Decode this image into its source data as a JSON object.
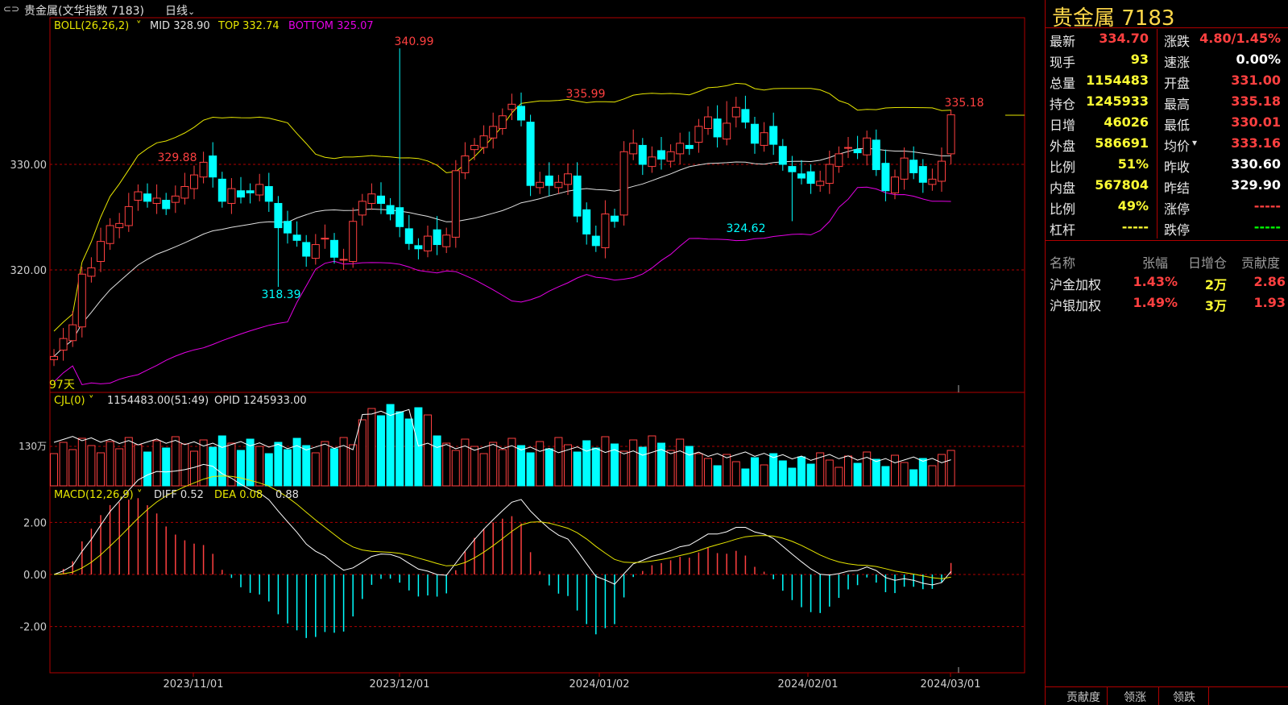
{
  "titlebar": {
    "icon": "link-icon",
    "title": "贵金属(文华指数 7183)",
    "period": "日线",
    "period_caret": "v"
  },
  "boll": {
    "label": "BOLL(26,26,2)",
    "mid_text": "MID 328.90",
    "top_text": "TOP 332.74",
    "bottom_text": "BOTTOM 325.07",
    "annotations": [
      "340.99",
      "335.99",
      "335.18",
      "329.88",
      "318.39",
      "324.62"
    ],
    "day_count": "97天"
  },
  "price_axis": [
    "330.00",
    "320.00"
  ],
  "cjl": {
    "label": "CJL(0)",
    "values_text": "1154483.00(51:49)",
    "opid_text": "OPID 1245933.00",
    "axis_label": "130万"
  },
  "macd": {
    "label": "MACD(12,26,9)",
    "diff_text": "DIFF 0.52",
    "dea_text": "DEA 0.08",
    "macd_text": "0.88",
    "axis": [
      "2.00",
      "0.00",
      "-2.00"
    ]
  },
  "date_axis": [
    "2023/11/01",
    "2023/12/01",
    "2024/01/02",
    "2024/02/01",
    "2024/03/01"
  ],
  "colors": {
    "up": "#ff4040",
    "down": "#00ffff",
    "mid_line": "#e0e0e0",
    "top_line": "#e6e600",
    "bottom_line": "#e600e6",
    "grid": "#b00000",
    "yellow": "#ffff33",
    "white": "#ffffff",
    "green": "#00ff00"
  },
  "sidebar": {
    "title": "贵金属  7183",
    "quote_left": [
      {
        "label": "最新",
        "value": "334.70",
        "color": "#ff4040"
      },
      {
        "label": "现手",
        "value": "93",
        "color": "#ffff33"
      },
      {
        "label": "总量",
        "value": "1154483",
        "color": "#ffff33"
      },
      {
        "label": "持仓",
        "value": "1245933",
        "color": "#ffff33"
      },
      {
        "label": "日增",
        "value": "46026",
        "color": "#ffff33"
      },
      {
        "label": "外盘",
        "value": "586691",
        "color": "#ffff33"
      },
      {
        "label": "比例",
        "value": "51%",
        "color": "#ffff33"
      },
      {
        "label": "内盘",
        "value": "567804",
        "color": "#ffff33"
      },
      {
        "label": "比例",
        "value": "49%",
        "color": "#ffff33"
      },
      {
        "label": "杠杆",
        "value": "-----",
        "color": "#ffff33"
      }
    ],
    "quote_right": [
      {
        "label": "涨跌",
        "value": "4.80/1.45%",
        "color": "#ff4040"
      },
      {
        "label": "速涨",
        "value": "0.00%",
        "color": "#ffffff"
      },
      {
        "label": "开盘",
        "value": "331.00",
        "color": "#ff4040"
      },
      {
        "label": "最高",
        "value": "335.18",
        "color": "#ff4040"
      },
      {
        "label": "最低",
        "value": "330.01",
        "color": "#ff4040"
      },
      {
        "label": "均价",
        "value": "333.16",
        "color": "#ff4040",
        "caret": true
      },
      {
        "label": "昨收",
        "value": "330.60",
        "color": "#ffffff"
      },
      {
        "label": "昨结",
        "value": "329.90",
        "color": "#ffffff"
      },
      {
        "label": "涨停",
        "value": "-----",
        "color": "#ff4040"
      },
      {
        "label": "跌停",
        "value": "-----",
        "color": "#00ff00"
      }
    ],
    "table_headers": [
      "名称",
      "张幅",
      "日增仓",
      "贡献度"
    ],
    "table_rows": [
      {
        "name": "沪金加权",
        "change": "1.43%",
        "oi": "2万",
        "contrib": "2.86"
      },
      {
        "name": "沪银加权",
        "change": "1.49%",
        "oi": "3万",
        "contrib": "1.93"
      }
    ],
    "tabs": [
      "贡献度",
      "领涨",
      "领跌"
    ]
  },
  "chart_data": {
    "type": "candlestick",
    "series": [
      {
        "name": "BOLL",
        "params": "26,26,2"
      },
      {
        "name": "CJL",
        "params": "0"
      },
      {
        "name": "MACD",
        "params": "12,26,9"
      }
    ],
    "price_range": [
      310,
      340.99
    ],
    "x_ticks": [
      "2023/11/01",
      "2023/12/01",
      "2024/01/02",
      "2024/02/01",
      "2024/03/01"
    ],
    "last": {
      "open": 331.0,
      "high": 335.18,
      "low": 330.01,
      "close": 334.7
    }
  }
}
